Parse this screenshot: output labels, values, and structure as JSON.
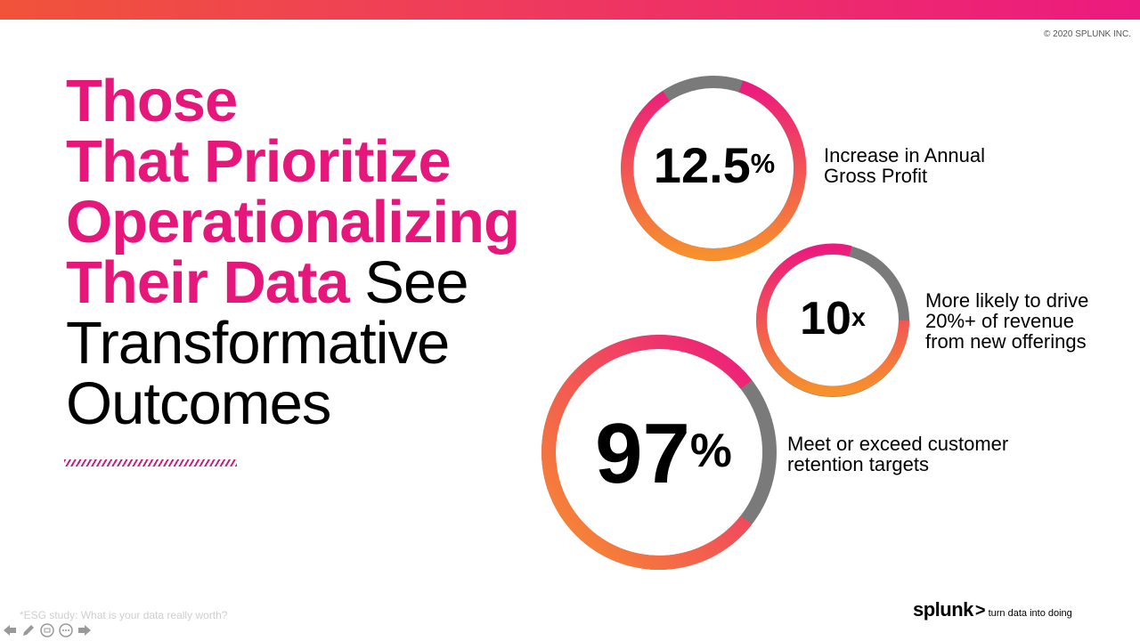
{
  "copyright": "© 2020 SPLUNK INC.",
  "headline": {
    "line1": "Those",
    "line2": "That Prioritize",
    "line3": "Operationalizing",
    "line4_highlight": "Their Data",
    "line4_plain": " See",
    "line5": "Transformative",
    "line6": "Outcomes"
  },
  "stats": [
    {
      "value": "12.5",
      "suffix": "%",
      "description_line1": "Increase in Annual",
      "description_line2": "Gross Profit"
    },
    {
      "value": "10",
      "suffix": "x",
      "description_line1": "More likely to drive",
      "description_line2": "20%+ of revenue",
      "description_line3": "from new offerings"
    },
    {
      "value": "97",
      "suffix": "%",
      "description_line1": "Meet or exceed customer",
      "description_line2": "retention targets"
    }
  ],
  "footnote": "*ESG study: What is your data really worth?",
  "logo": {
    "brand": "splunk",
    "chevron": ">",
    "tagline": "turn data into doing"
  },
  "colors": {
    "accent": "#e5177b",
    "gradient_start": "#f7902d",
    "ring_gray": "#7a7a7a"
  },
  "controls": [
    "prev-arrow-icon",
    "pen-icon",
    "slides-icon",
    "more-icon",
    "next-arrow-icon"
  ]
}
